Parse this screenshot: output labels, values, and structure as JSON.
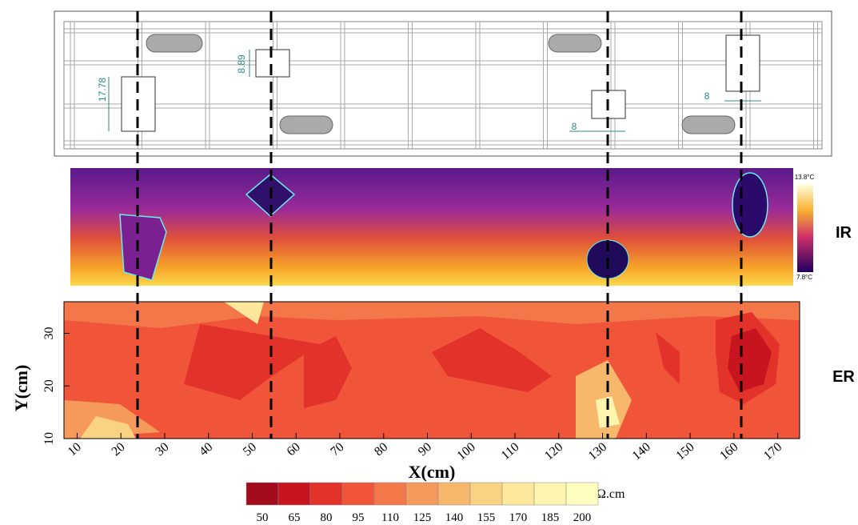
{
  "schematic": {
    "dimensions": [
      "17.78",
      "8.89",
      "8",
      "8"
    ]
  },
  "ir": {
    "label": "IR",
    "scale_max": "13.8°C",
    "scale_min": "7.8°C"
  },
  "chart_data": {
    "type": "contour",
    "label": "ER",
    "x_label": "X(cm)",
    "y_label": "Y(cm)",
    "xlim": [
      7,
      175
    ],
    "ylim": [
      10,
      36
    ],
    "xticks": [
      10,
      20,
      30,
      40,
      50,
      60,
      70,
      80,
      90,
      100,
      110,
      120,
      130,
      140,
      150,
      160,
      170
    ],
    "yticks": [
      10,
      20,
      30
    ],
    "colorbar": {
      "ticks": [
        50,
        65,
        80,
        95,
        110,
        125,
        140,
        155,
        170,
        185,
        200
      ],
      "colors": [
        "#a30c1c",
        "#c8141e",
        "#e3322a",
        "#f0553a",
        "#f4774a",
        "#f69a5c",
        "#f8b86c",
        "#fad283",
        "#fce79a",
        "#fdf5ae",
        "#ffffc0"
      ],
      "unit": "kΩ.cm"
    }
  }
}
